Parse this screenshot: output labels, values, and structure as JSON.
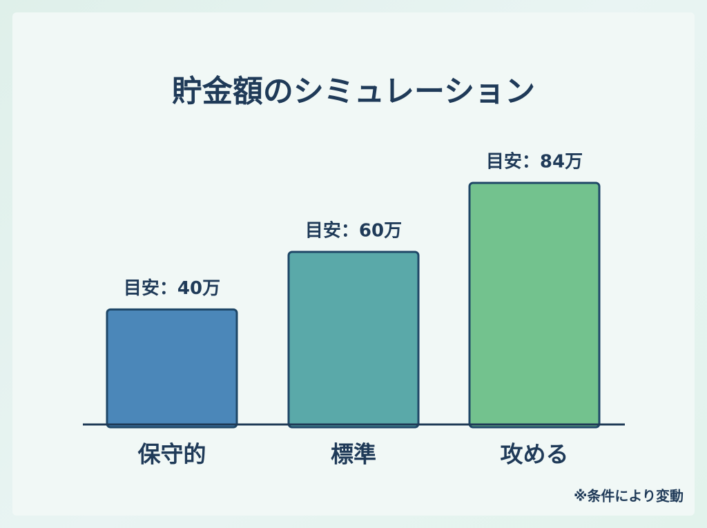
{
  "chart_data": {
    "type": "bar",
    "title": "貯金額のシミュレーション",
    "categories": [
      "保守的",
      "標準",
      "攻める"
    ],
    "values": [
      40,
      60,
      84
    ],
    "value_labels": [
      "目安：40万",
      "目安：60万",
      "目安：84万"
    ],
    "colors": [
      "#4b87b9",
      "#5aa9a9",
      "#73c28e"
    ],
    "annotation": "※条件により変動"
  }
}
